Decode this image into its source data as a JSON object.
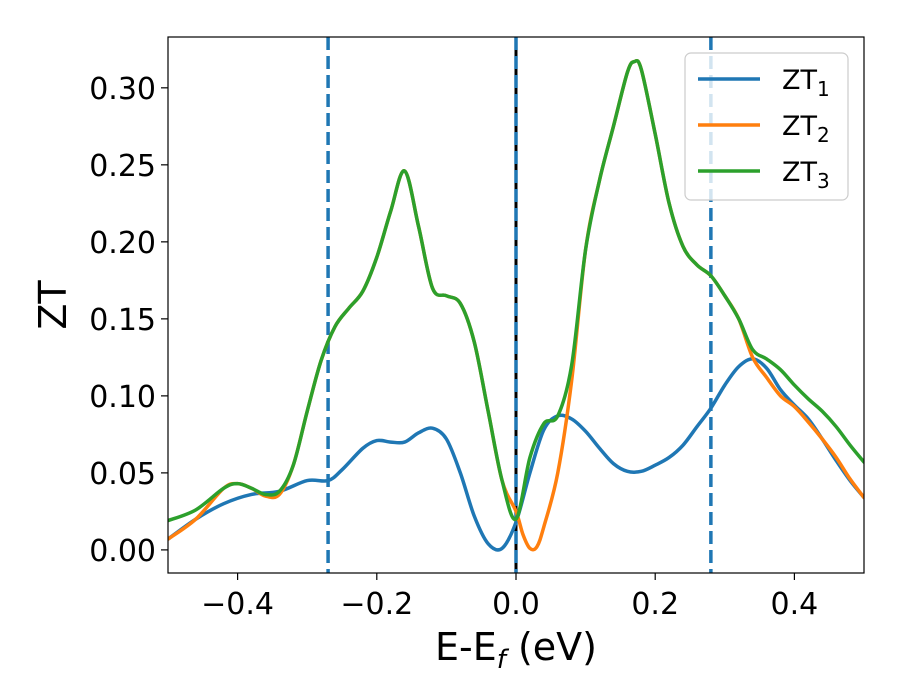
{
  "chart_data": {
    "type": "line",
    "xlabel": "E-E",
    "xlabel_sub": "f",
    "xlabel_unit": " (eV)",
    "ylabel": "ZT",
    "xlim": [
      -0.5,
      0.5
    ],
    "ylim": [
      -0.015,
      0.333
    ],
    "x_ticks": [
      -0.4,
      -0.2,
      0.0,
      0.2,
      0.4
    ],
    "x_tick_labels": [
      "−0.4",
      "−0.2",
      "0.0",
      "0.2",
      "0.4"
    ],
    "y_ticks": [
      0.0,
      0.05,
      0.1,
      0.15,
      0.2,
      0.25,
      0.3
    ],
    "y_tick_labels": [
      "0.00",
      "0.05",
      "0.10",
      "0.15",
      "0.20",
      "0.25",
      "0.30"
    ],
    "grid": false,
    "legend_position": "upper right",
    "vlines": [
      {
        "x": -0.27,
        "style": "dashed",
        "color": "#1f77b4"
      },
      {
        "x": 0.0,
        "style": "solid",
        "color": "#000000"
      },
      {
        "x": 0.0,
        "style": "dashed",
        "color": "#1f77b4"
      },
      {
        "x": 0.28,
        "style": "dashed",
        "color": "#1f77b4"
      }
    ],
    "series": [
      {
        "name": "ZT",
        "name_sub": "1",
        "color": "#1f77b4",
        "x": [
          -0.5,
          -0.46,
          -0.42,
          -0.38,
          -0.34,
          -0.3,
          -0.27,
          -0.25,
          -0.22,
          -0.2,
          -0.18,
          -0.16,
          -0.14,
          -0.12,
          -0.1,
          -0.08,
          -0.06,
          -0.04,
          -0.02,
          0.0,
          0.02,
          0.04,
          0.06,
          0.08,
          0.1,
          0.12,
          0.14,
          0.16,
          0.18,
          0.2,
          0.22,
          0.24,
          0.26,
          0.28,
          0.3,
          0.32,
          0.34,
          0.36,
          0.38,
          0.4,
          0.42,
          0.44,
          0.46,
          0.48,
          0.5
        ],
        "y": [
          0.007,
          0.02,
          0.03,
          0.036,
          0.038,
          0.045,
          0.045,
          0.052,
          0.066,
          0.071,
          0.07,
          0.07,
          0.076,
          0.079,
          0.072,
          0.05,
          0.022,
          0.004,
          0.001,
          0.018,
          0.05,
          0.078,
          0.087,
          0.085,
          0.077,
          0.066,
          0.056,
          0.051,
          0.051,
          0.055,
          0.06,
          0.068,
          0.08,
          0.092,
          0.107,
          0.119,
          0.124,
          0.118,
          0.104,
          0.094,
          0.085,
          0.072,
          0.058,
          0.045,
          0.034
        ]
      },
      {
        "name": "ZT",
        "name_sub": "2",
        "color": "#ff7f0e",
        "x": [
          -0.5,
          -0.46,
          -0.42,
          -0.4,
          -0.38,
          -0.36,
          -0.34,
          -0.32,
          -0.3,
          -0.28,
          -0.26,
          -0.24,
          -0.22,
          -0.2,
          -0.18,
          -0.16,
          -0.14,
          -0.12,
          -0.1,
          -0.08,
          -0.06,
          -0.04,
          -0.02,
          0.0,
          0.01,
          0.02,
          0.03,
          0.04,
          0.06,
          0.08,
          0.1,
          0.12,
          0.14,
          0.16,
          0.17,
          0.18,
          0.2,
          0.22,
          0.24,
          0.26,
          0.28,
          0.3,
          0.32,
          0.34,
          0.36,
          0.38,
          0.4,
          0.42,
          0.44,
          0.46,
          0.48,
          0.5
        ],
        "y": [
          0.007,
          0.02,
          0.04,
          0.043,
          0.04,
          0.035,
          0.036,
          0.055,
          0.09,
          0.123,
          0.145,
          0.157,
          0.168,
          0.19,
          0.22,
          0.246,
          0.21,
          0.17,
          0.165,
          0.16,
          0.135,
          0.09,
          0.045,
          0.025,
          0.01,
          0.001,
          0.002,
          0.015,
          0.05,
          0.11,
          0.195,
          0.24,
          0.275,
          0.31,
          0.317,
          0.312,
          0.27,
          0.225,
          0.197,
          0.185,
          0.178,
          0.165,
          0.15,
          0.125,
          0.112,
          0.1,
          0.093,
          0.083,
          0.072,
          0.06,
          0.046,
          0.034
        ]
      },
      {
        "name": "ZT",
        "name_sub": "3",
        "color": "#2ca02c",
        "x": [
          -0.5,
          -0.46,
          -0.42,
          -0.4,
          -0.38,
          -0.36,
          -0.34,
          -0.32,
          -0.3,
          -0.28,
          -0.26,
          -0.24,
          -0.22,
          -0.2,
          -0.18,
          -0.16,
          -0.14,
          -0.12,
          -0.1,
          -0.08,
          -0.06,
          -0.04,
          -0.02,
          0.0,
          0.02,
          0.04,
          0.06,
          0.08,
          0.1,
          0.12,
          0.14,
          0.16,
          0.17,
          0.18,
          0.2,
          0.22,
          0.24,
          0.26,
          0.28,
          0.3,
          0.32,
          0.34,
          0.36,
          0.38,
          0.4,
          0.42,
          0.44,
          0.46,
          0.48,
          0.5
        ],
        "y": [
          0.019,
          0.026,
          0.04,
          0.043,
          0.04,
          0.036,
          0.038,
          0.055,
          0.09,
          0.123,
          0.145,
          0.157,
          0.168,
          0.19,
          0.22,
          0.246,
          0.21,
          0.17,
          0.165,
          0.16,
          0.135,
          0.09,
          0.045,
          0.02,
          0.06,
          0.082,
          0.087,
          0.12,
          0.195,
          0.24,
          0.275,
          0.31,
          0.317,
          0.312,
          0.27,
          0.225,
          0.197,
          0.185,
          0.178,
          0.165,
          0.15,
          0.13,
          0.124,
          0.117,
          0.107,
          0.098,
          0.09,
          0.08,
          0.068,
          0.057
        ]
      }
    ]
  }
}
